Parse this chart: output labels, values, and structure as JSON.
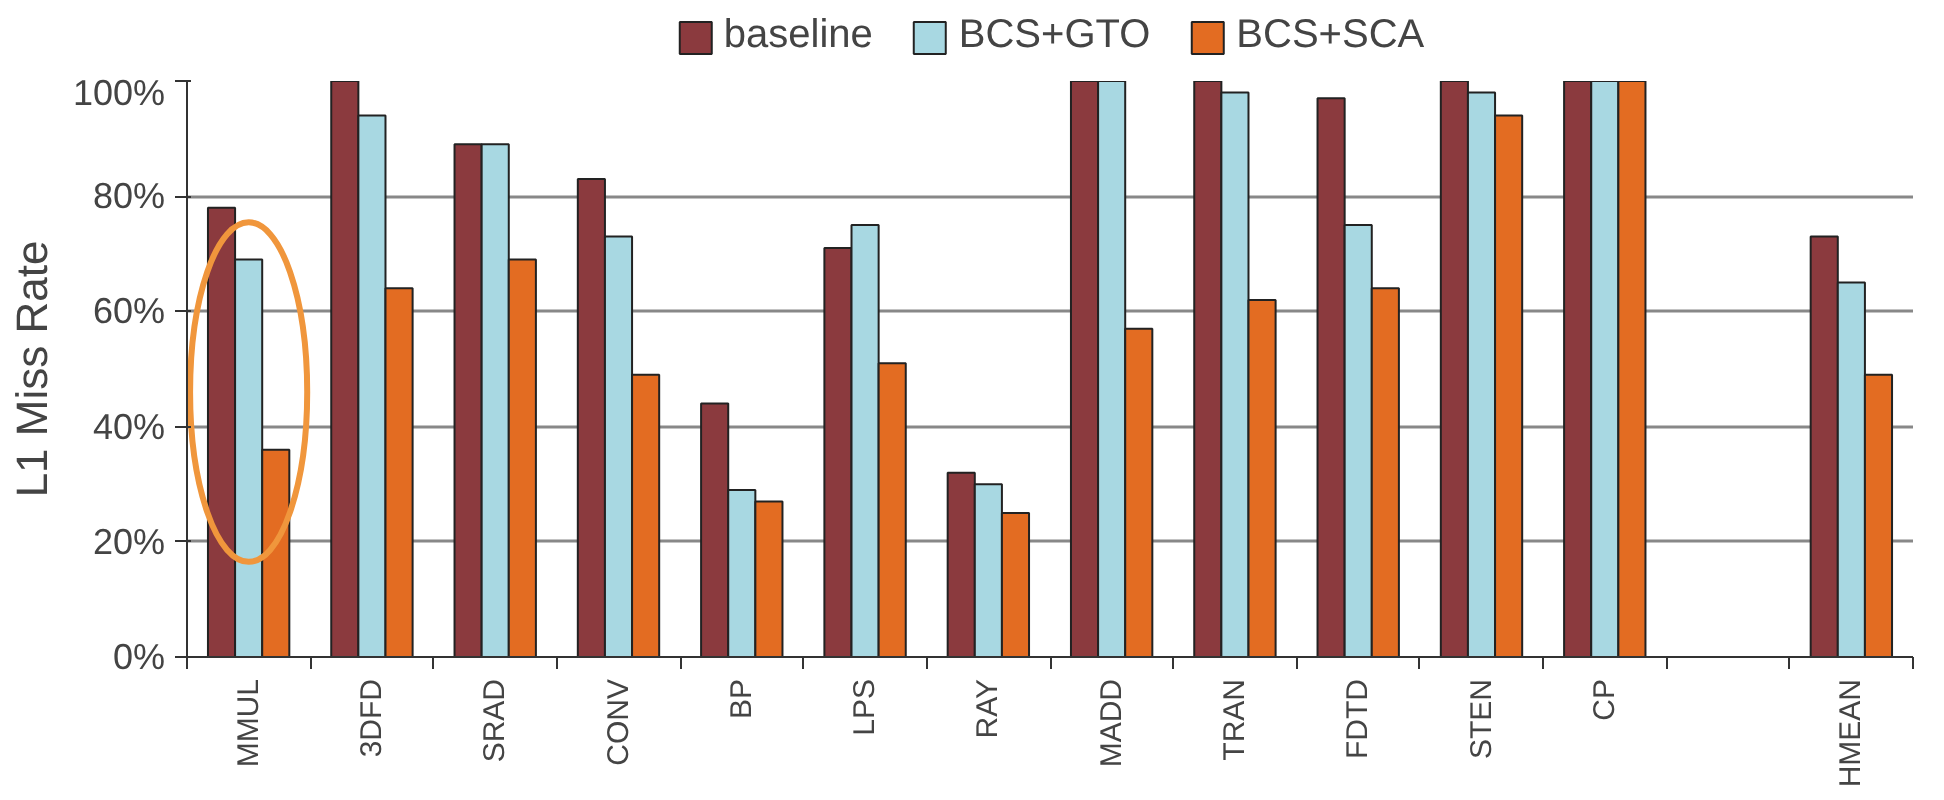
{
  "chart_data": {
    "type": "bar",
    "ylabel": "L1 Miss Rate",
    "categories": [
      "MMUL",
      "3DFD",
      "SRAD",
      "CONV",
      "BP",
      "LPS",
      "RAY",
      "MADD",
      "TRAN",
      "FDTD",
      "STEN",
      "CP",
      null,
      "HMEAN"
    ],
    "series": [
      {
        "name": "baseline",
        "color": "#8b3a3e",
        "values": [
          78,
          100,
          89,
          83,
          44,
          71,
          32,
          100,
          100,
          97,
          100,
          100,
          null,
          73
        ]
      },
      {
        "name": "BCS+GTO",
        "color": "#a8d8e2",
        "values": [
          69,
          94,
          89,
          73,
          29,
          75,
          30,
          100,
          98,
          75,
          98,
          100,
          null,
          65
        ]
      },
      {
        "name": "BCS+SCA",
        "color": "#e36c22",
        "values": [
          36,
          64,
          69,
          49,
          27,
          51,
          25,
          57,
          62,
          64,
          94,
          100,
          null,
          49
        ]
      }
    ],
    "ylim": [
      0,
      100
    ],
    "yticks": [
      {
        "value": 0,
        "label": "0%"
      },
      {
        "value": 20,
        "label": "20%"
      },
      {
        "value": 40,
        "label": "40%"
      },
      {
        "value": 60,
        "label": "60%"
      },
      {
        "value": 80,
        "label": "80%"
      },
      {
        "value": 100,
        "label": "100%"
      }
    ],
    "grid": "y",
    "legend": "top"
  }
}
